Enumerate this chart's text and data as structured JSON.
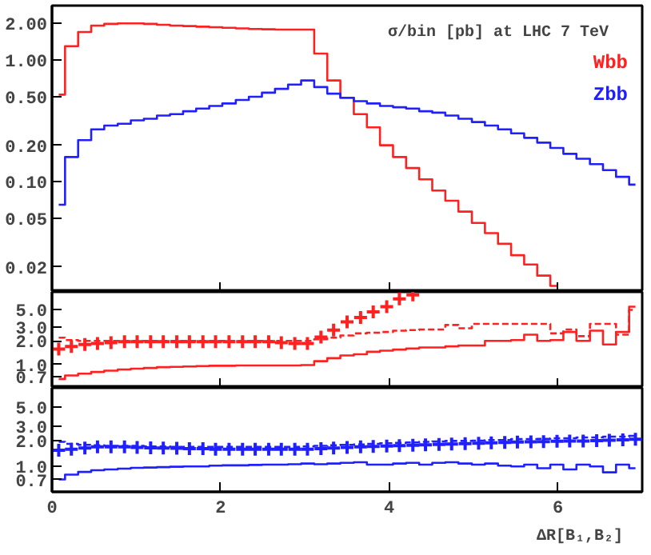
{
  "chart_data": [
    {
      "type": "step",
      "title": "σ/bin [pb]  at LHC 7 TeV",
      "log": true,
      "legend": "top right",
      "tick_labels": "y",
      "xlim": [
        0,
        7
      ],
      "xticks": [
        0,
        2,
        4,
        6
      ],
      "ylim": [
        0.0125,
        2.8
      ],
      "yticks": [
        {
          "value": 0.02,
          "label": "0.02"
        },
        {
          "value": 0.05,
          "label": "0.05"
        },
        {
          "value": 0.1,
          "label": "0.10"
        },
        {
          "value": 0.2,
          "label": "0.20"
        },
        {
          "value": 0.5,
          "label": "0.50"
        },
        {
          "value": 1,
          "label": "1.00"
        },
        {
          "value": 2,
          "label": "2.00"
        }
      ],
      "x": [
        0.08,
        0.23,
        0.39,
        0.54,
        0.7,
        0.86,
        1.01,
        1.17,
        1.32,
        1.48,
        1.63,
        1.79,
        1.94,
        2.1,
        2.26,
        2.41,
        2.57,
        2.72,
        2.88,
        3.03,
        3.19,
        3.34,
        3.5,
        3.66,
        3.81,
        3.97,
        4.12,
        4.28,
        4.43,
        4.59,
        4.74,
        4.9,
        5.06,
        5.21,
        5.37,
        5.52,
        5.68,
        5.83,
        5.99,
        6.14,
        6.3,
        6.46,
        6.61,
        6.77,
        6.92
      ],
      "series": [
        {
          "name": "Wbb",
          "color": "#ff2020",
          "values": [
            0.52,
            1.3,
            1.7,
            1.92,
            1.98,
            2.0,
            2.0,
            1.98,
            1.95,
            1.92,
            1.9,
            1.88,
            1.86,
            1.84,
            1.82,
            1.8,
            1.79,
            1.78,
            1.78,
            1.78,
            1.13,
            0.68,
            0.49,
            0.36,
            0.28,
            0.2,
            0.16,
            0.13,
            0.105,
            0.085,
            0.07,
            0.057,
            0.046,
            0.038,
            0.031,
            0.025,
            0.021,
            0.017,
            0.014,
            null,
            null,
            null,
            null,
            null,
            null
          ]
        },
        {
          "name": "Zbb",
          "color": "#2020ff",
          "values": [
            0.065,
            0.16,
            0.22,
            0.27,
            0.29,
            0.3,
            0.32,
            0.33,
            0.35,
            0.36,
            0.38,
            0.4,
            0.42,
            0.44,
            0.47,
            0.5,
            0.54,
            0.58,
            0.63,
            0.68,
            0.6,
            0.53,
            0.49,
            0.46,
            0.44,
            0.42,
            0.41,
            0.4,
            0.38,
            0.37,
            0.35,
            0.33,
            0.31,
            0.29,
            0.27,
            0.25,
            0.23,
            0.21,
            0.19,
            0.17,
            0.155,
            0.14,
            0.125,
            0.11,
            0.095
          ]
        }
      ]
    },
    {
      "type": "step",
      "log": true,
      "tick_labels": "y",
      "xlim": [
        0,
        7
      ],
      "xticks": [
        0,
        2,
        4,
        6
      ],
      "ylim": [
        0.5,
        8.5
      ],
      "yticks": [
        {
          "value": 0.7,
          "label": "0.7"
        },
        {
          "value": 1,
          "label": "1.0"
        },
        {
          "value": 2,
          "label": "2.0"
        },
        {
          "value": 3,
          "label": "3.0"
        },
        {
          "value": 5,
          "label": "5.0"
        }
      ],
      "x": [
        0.08,
        0.23,
        0.39,
        0.54,
        0.7,
        0.86,
        1.01,
        1.17,
        1.32,
        1.48,
        1.63,
        1.79,
        1.94,
        2.1,
        2.26,
        2.41,
        2.57,
        2.72,
        2.88,
        3.03,
        3.19,
        3.34,
        3.5,
        3.66,
        3.81,
        3.97,
        4.12,
        4.28,
        4.43,
        4.59,
        4.74,
        4.9,
        5.06,
        5.21,
        5.37,
        5.52,
        5.68,
        5.83,
        5.99,
        6.14,
        6.3,
        6.46,
        6.61,
        6.77,
        6.92
      ],
      "series": [
        {
          "color": "#ff2020",
          "line_style": "solid",
          "values": [
            0.65,
            0.72,
            0.76,
            0.8,
            0.83,
            0.86,
            0.88,
            0.9,
            0.92,
            0.93,
            0.94,
            0.95,
            0.96,
            0.96,
            0.97,
            0.97,
            0.97,
            0.97,
            0.97,
            0.98,
            1.1,
            1.2,
            1.3,
            1.35,
            1.45,
            1.5,
            1.55,
            1.6,
            1.65,
            1.65,
            1.7,
            1.75,
            1.75,
            2.0,
            2.0,
            2.05,
            2.4,
            2.0,
            2.05,
            2.6,
            2.0,
            2.7,
            1.8,
            2.6,
            5.5
          ]
        },
        {
          "color": "#ff2020",
          "line_style": "dashed",
          "values": [
            2.2,
            2.05,
            2.0,
            2.0,
            2.0,
            2.0,
            2.0,
            2.0,
            2.0,
            2.0,
            2.0,
            2.0,
            2.0,
            2.0,
            2.0,
            2.0,
            2.0,
            2.0,
            2.0,
            2.0,
            2.1,
            2.2,
            2.35,
            2.5,
            2.55,
            2.6,
            2.7,
            2.75,
            2.8,
            2.8,
            3.2,
            2.9,
            3.3,
            3.3,
            3.3,
            3.3,
            3.3,
            3.3,
            2.5,
            2.8,
            2.3,
            3.3,
            3.3,
            2.4,
            5.0
          ]
        },
        {
          "type": "scatter",
          "marker": "cross",
          "color": "#ff2020",
          "values": [
            1.57,
            1.7,
            1.8,
            1.85,
            1.9,
            1.95,
            1.95,
            1.95,
            1.95,
            1.95,
            1.95,
            1.95,
            1.95,
            1.95,
            1.95,
            1.95,
            1.95,
            1.9,
            1.85,
            1.85,
            2.24,
            2.75,
            3.5,
            4.0,
            4.7,
            5.5,
            6.9,
            7.8,
            null,
            null,
            null,
            null,
            null,
            null,
            null,
            null,
            null,
            null,
            null,
            null,
            null,
            null,
            null,
            null,
            null
          ]
        }
      ]
    },
    {
      "type": "step",
      "log": true,
      "xlabel": "ΔR[B₁,B₂]",
      "xlim": [
        0,
        7
      ],
      "xticks": [
        0,
        2,
        4,
        6
      ],
      "ylim": [
        0.5,
        8.5
      ],
      "yticks": [
        {
          "value": 0.7,
          "label": "0.7"
        },
        {
          "value": 1,
          "label": "1.0"
        },
        {
          "value": 2,
          "label": "2.0"
        },
        {
          "value": 3,
          "label": "3.0"
        },
        {
          "value": 5,
          "label": "5.0"
        }
      ],
      "x": [
        0.08,
        0.23,
        0.39,
        0.54,
        0.7,
        0.86,
        1.01,
        1.17,
        1.32,
        1.48,
        1.63,
        1.79,
        1.94,
        2.1,
        2.26,
        2.41,
        2.57,
        2.72,
        2.88,
        3.03,
        3.19,
        3.34,
        3.5,
        3.66,
        3.81,
        3.97,
        4.12,
        4.28,
        4.43,
        4.59,
        4.74,
        4.9,
        5.06,
        5.21,
        5.37,
        5.52,
        5.68,
        5.83,
        5.99,
        6.14,
        6.3,
        6.46,
        6.61,
        6.77,
        6.92
      ],
      "series": [
        {
          "color": "#2020ff",
          "line_style": "solid",
          "values": [
            0.7,
            0.8,
            0.86,
            0.9,
            0.92,
            0.94,
            0.96,
            0.97,
            0.98,
            0.99,
            1.0,
            1.0,
            1.02,
            1.03,
            1.03,
            1.04,
            1.05,
            1.05,
            1.06,
            1.08,
            1.06,
            1.08,
            1.1,
            1.12,
            1.05,
            1.05,
            1.08,
            1.1,
            1.05,
            1.1,
            1.12,
            1.08,
            1.05,
            1.08,
            1.02,
            1.0,
            1.05,
            0.95,
            1.05,
            0.92,
            1.05,
            1.0,
            0.85,
            1.05,
            0.95
          ]
        },
        {
          "color": "#2020ff",
          "line_style": "dashed",
          "values": [
            1.95,
            1.85,
            1.8,
            1.78,
            1.75,
            1.75,
            1.75,
            1.72,
            1.72,
            1.7,
            1.7,
            1.7,
            1.7,
            1.7,
            1.7,
            1.7,
            1.7,
            1.7,
            1.7,
            1.72,
            1.75,
            1.78,
            1.8,
            1.82,
            1.85,
            1.88,
            1.9,
            1.92,
            1.95,
            1.97,
            2.0,
            2.0,
            2.02,
            2.05,
            2.05,
            2.1,
            2.1,
            2.12,
            2.15,
            2.15,
            2.2,
            2.2,
            2.25,
            2.25,
            2.3
          ]
        },
        {
          "type": "scatter",
          "marker": "cross",
          "color": "#2020ff",
          "values": [
            1.55,
            1.6,
            1.65,
            1.7,
            1.7,
            1.7,
            1.68,
            1.66,
            1.65,
            1.64,
            1.62,
            1.62,
            1.6,
            1.6,
            1.6,
            1.6,
            1.6,
            1.6,
            1.6,
            1.6,
            1.62,
            1.65,
            1.68,
            1.7,
            1.72,
            1.74,
            1.76,
            1.78,
            1.8,
            1.82,
            1.84,
            1.86,
            1.88,
            1.9,
            1.92,
            1.94,
            1.95,
            1.96,
            1.98,
            2.0,
            2.0,
            2.02,
            2.04,
            2.06,
            2.1
          ]
        }
      ]
    }
  ]
}
